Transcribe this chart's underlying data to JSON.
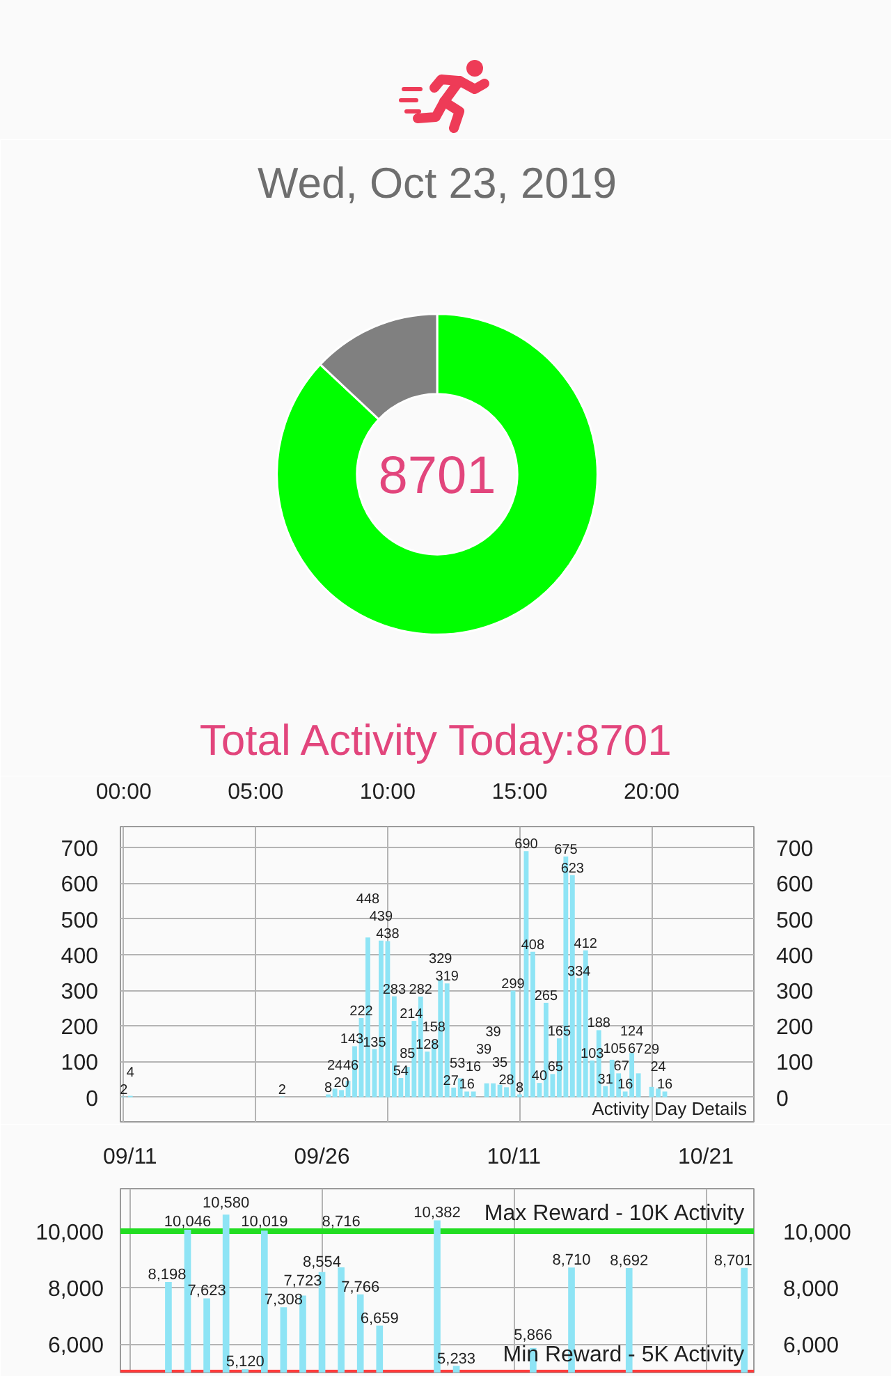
{
  "chart_data": [
    {
      "type": "donut",
      "title": "Wed, Oct 23, 2019",
      "categories": [
        null,
        null
      ],
      "values": [
        87,
        13
      ],
      "colors": [
        "#00ff00",
        "#808080"
      ],
      "annotations": [
        "8701",
        "Total Activity Today:8701"
      ]
    },
    {
      "type": "bar",
      "x": [
        0,
        0.25,
        6,
        7.75,
        8,
        8.25,
        8.5,
        8.75,
        9,
        9.25,
        9.5,
        9.75,
        10,
        10.25,
        10.5,
        10.75,
        11,
        11.25,
        11.5,
        11.75,
        12,
        12.25,
        12.5,
        12.75,
        13,
        13.25,
        13.75,
        14,
        14.25,
        14.5,
        14.75,
        15,
        15.25,
        15.5,
        15.75,
        16,
        16.25,
        16.5,
        16.75,
        17,
        17.25,
        17.5,
        17.75,
        18,
        18.25,
        18.5,
        18.75,
        19,
        19.25,
        19.5,
        20,
        20.25,
        20.5
      ],
      "values": [
        2,
        4,
        2,
        8,
        24,
        20,
        46,
        143,
        222,
        448,
        135,
        439,
        438,
        283,
        54,
        85,
        214,
        282,
        128,
        158,
        329,
        319,
        27,
        53,
        16,
        16,
        39,
        39,
        35,
        28,
        299,
        8,
        690,
        408,
        40,
        265,
        65,
        165,
        675,
        623,
        334,
        412,
        103,
        188,
        31,
        105,
        67,
        16,
        124,
        67,
        29,
        24,
        16
      ],
      "color": "#8ee4f5",
      "data_labels": true,
      "xlim": [
        -0.125,
        23.875
      ],
      "xticks": [
        {
          "value": 0,
          "label": "00:00"
        },
        {
          "value": 5,
          "label": "05:00"
        },
        {
          "value": 10,
          "label": "10:00"
        },
        {
          "value": 15,
          "label": "15:00"
        },
        {
          "value": 20,
          "label": "20:00"
        }
      ],
      "ylim": [
        -69,
        759
      ],
      "yticks": [
        0,
        100,
        200,
        300,
        400,
        500,
        600,
        700
      ],
      "y2lim": [
        -69,
        759
      ],
      "y2ticks": [
        0,
        100,
        200,
        300,
        400,
        500,
        600,
        700
      ],
      "grid": true,
      "annotations": [
        "Activity Day Details"
      ]
    },
    {
      "type": "bar",
      "categories": [
        "09/11",
        null,
        null,
        null,
        null,
        null,
        null,
        null,
        null,
        null,
        "09/26",
        null,
        null,
        null,
        null,
        null,
        null,
        null,
        null,
        null,
        "10/11",
        null,
        null,
        null,
        null,
        null,
        null,
        null,
        null,
        null,
        "10/21",
        null,
        null
      ],
      "values": [
        null,
        null,
        8198,
        10046,
        7623,
        10580,
        5120,
        10019,
        7308,
        7723,
        8554,
        8716,
        7766,
        6659,
        null,
        null,
        10382,
        5233,
        null,
        null,
        null,
        5866,
        null,
        8710,
        null,
        null,
        8692,
        null,
        null,
        null,
        null,
        null,
        8701
      ],
      "value_labels": [
        null,
        null,
        "8,198",
        "10,046",
        "7,623",
        "10,580",
        "5,120",
        "10,019",
        "7,308",
        "7,723",
        "8,554",
        "8,716",
        "7,766",
        "6,659",
        null,
        null,
        "10,382",
        "5,233",
        null,
        null,
        null,
        "5,866",
        null,
        "8,710",
        null,
        null,
        "8,692",
        null,
        null,
        null,
        null,
        null,
        "8,701"
      ],
      "color": "#8ee4f5",
      "ylim": [
        5000,
        11500
      ],
      "yticks": [
        {
          "value": 6000,
          "label": "6,000"
        },
        {
          "value": 8000,
          "label": "8,000"
        },
        {
          "value": 10000,
          "label": "10,000"
        }
      ],
      "y2lim": [
        5000,
        11500
      ],
      "y2ticks": [
        {
          "value": 6000,
          "label": "6,000"
        },
        {
          "value": 8000,
          "label": "8,000"
        },
        {
          "value": 10000,
          "label": "10,000"
        }
      ],
      "grid": true,
      "ref_lines": [
        {
          "axis": "y",
          "value": 10000,
          "label": "Max Reward - 10K Activity",
          "color": "#22dd22"
        },
        {
          "axis": "y",
          "value": 5000,
          "label": "Min Reward - 5K Activity"
        }
      ]
    }
  ]
}
